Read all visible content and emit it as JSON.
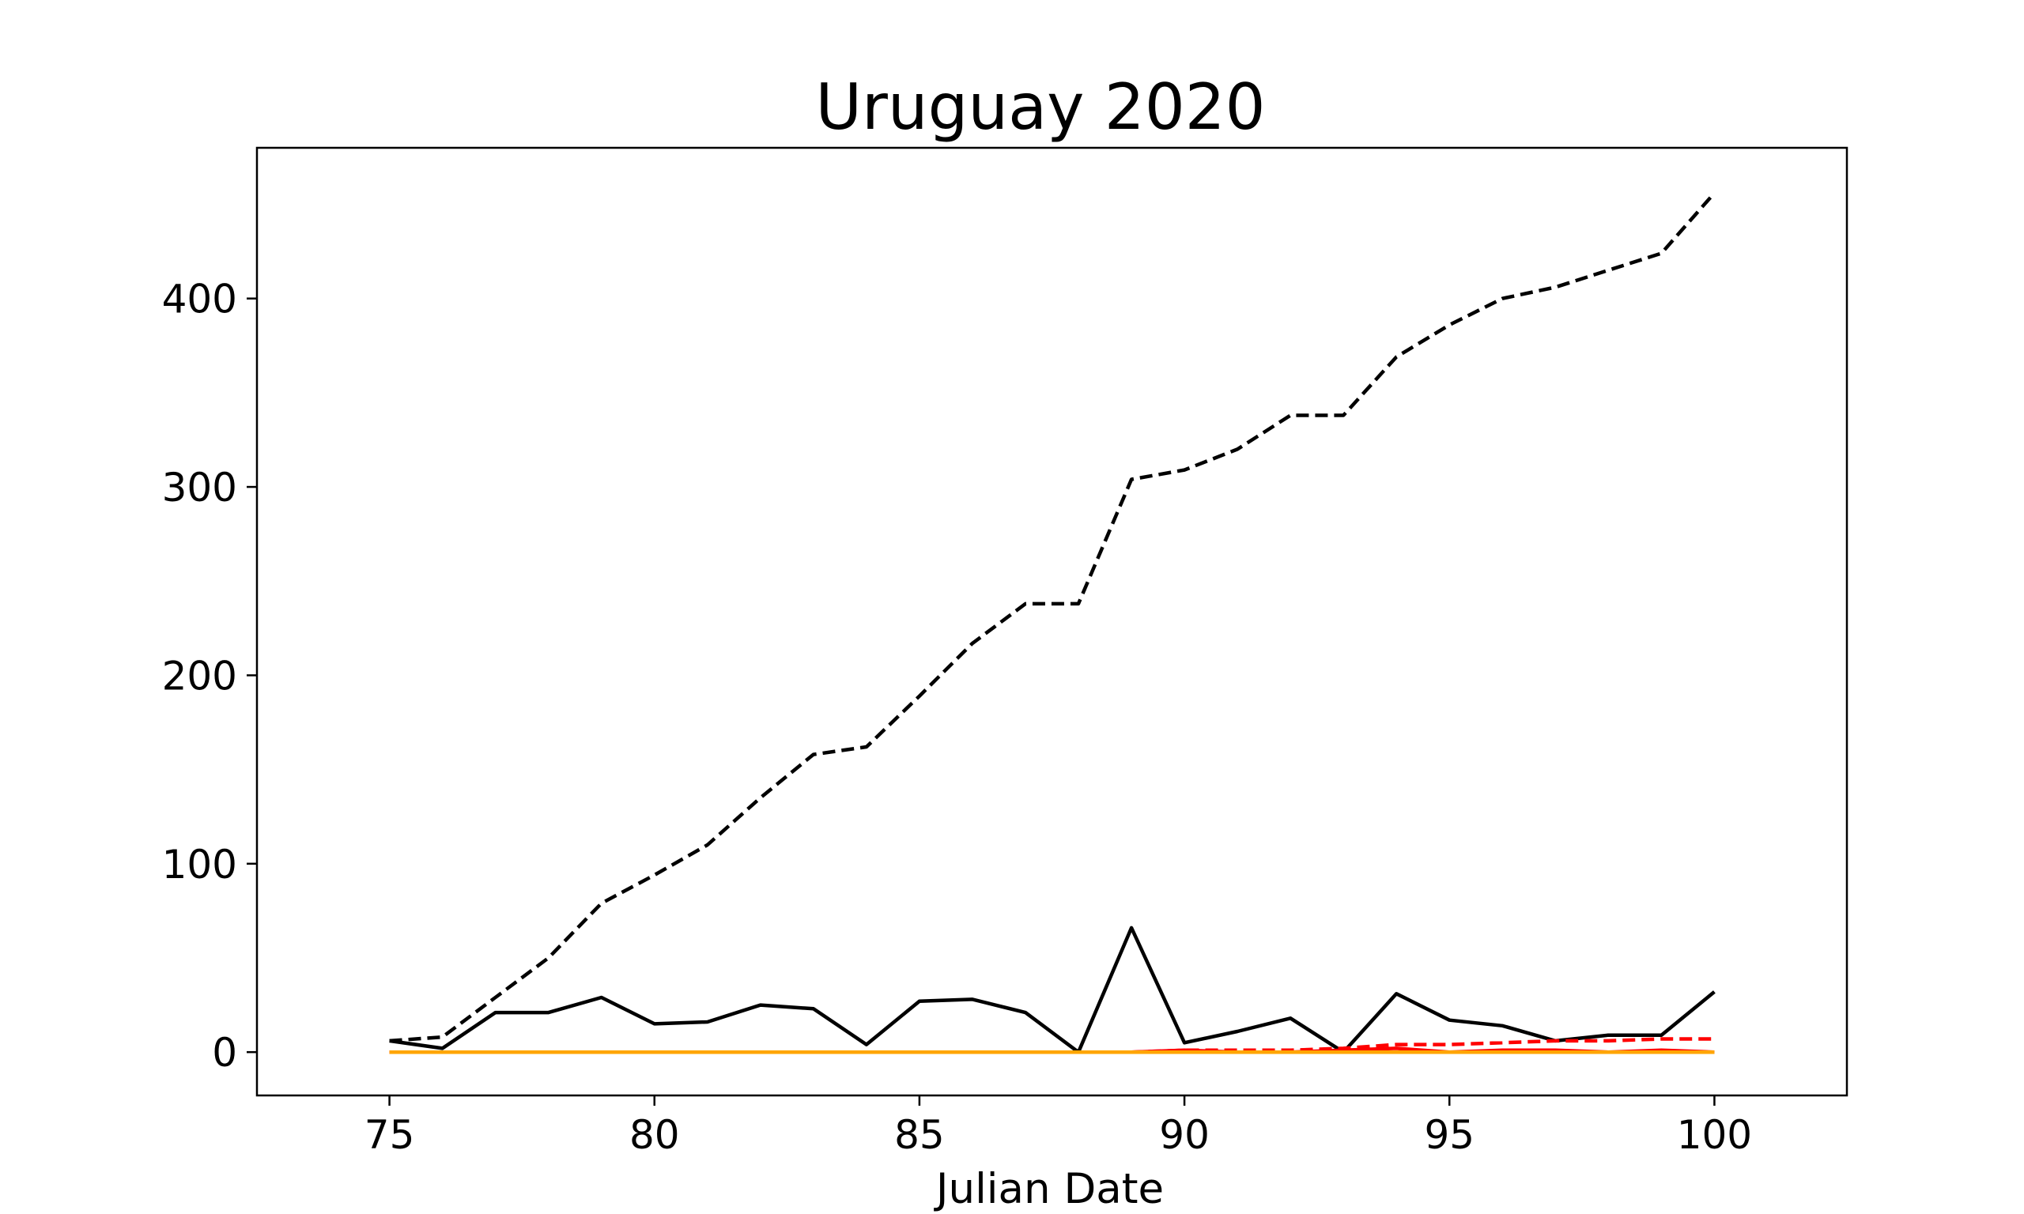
{
  "chart_data": {
    "type": "line",
    "title": "Uruguay 2020",
    "xlabel": "Julian Date",
    "ylabel": "",
    "xlim": [
      72.5,
      102.5
    ],
    "ylim": [
      -23,
      480
    ],
    "xticks": [
      75,
      80,
      85,
      90,
      95,
      100
    ],
    "yticks": [
      0,
      100,
      200,
      300,
      400
    ],
    "grid": false,
    "x": [
      75,
      76,
      77,
      78,
      79,
      80,
      81,
      82,
      83,
      84,
      85,
      86,
      87,
      88,
      89,
      90,
      91,
      92,
      93,
      94,
      95,
      96,
      97,
      98,
      99,
      100
    ],
    "series": [
      {
        "color": "#000000",
        "style": "dashed",
        "values": [
          6,
          8,
          29,
          50,
          79,
          94,
          110,
          135,
          158,
          162,
          189,
          217,
          238,
          238,
          304,
          309,
          320,
          338,
          338,
          369,
          386,
          400,
          406,
          415,
          424,
          456
        ]
      },
      {
        "color": "#000000",
        "style": "solid",
        "values": [
          6,
          2,
          21,
          21,
          29,
          15,
          16,
          25,
          23,
          4,
          27,
          28,
          21,
          0,
          66,
          5,
          11,
          18,
          0,
          31,
          17,
          14,
          6,
          9,
          9,
          32
        ]
      },
      {
        "color": "#ff0000",
        "style": "dashed",
        "values": [
          0,
          0,
          0,
          0,
          0,
          0,
          0,
          0,
          0,
          0,
          0,
          0,
          0,
          0,
          0,
          1,
          1,
          1,
          2,
          4,
          4,
          5,
          6,
          6,
          7,
          7
        ]
      },
      {
        "color": "#ff0000",
        "style": "solid",
        "values": [
          0,
          0,
          0,
          0,
          0,
          0,
          0,
          0,
          0,
          0,
          0,
          0,
          0,
          0,
          0,
          1,
          0,
          0,
          1,
          2,
          0,
          1,
          1,
          0,
          1,
          0
        ]
      },
      {
        "color": "#ffa500",
        "style": "solid",
        "values": [
          0,
          0,
          0,
          0,
          0,
          0,
          0,
          0,
          0,
          0,
          0,
          0,
          0,
          0,
          0,
          0,
          0,
          0,
          0,
          0,
          0,
          0,
          0,
          0,
          0,
          0
        ]
      }
    ]
  }
}
